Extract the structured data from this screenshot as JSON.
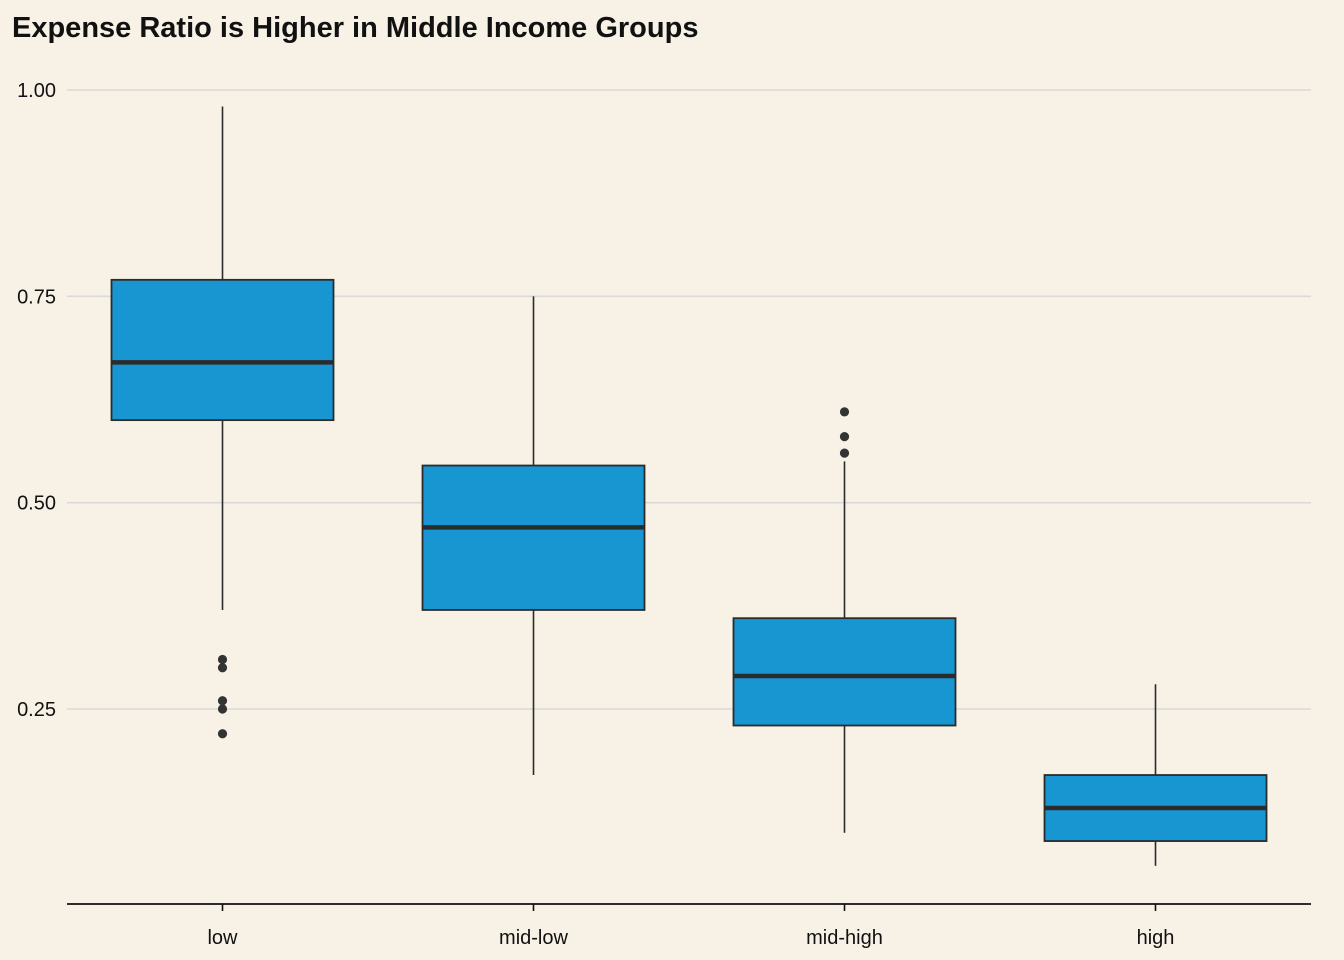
{
  "chart_data": {
    "type": "boxplot",
    "title": "Expense Ratio is Higher in Middle Income Groups",
    "xlabel": "",
    "ylabel": "",
    "ylim": [
      0.0,
      1.0
    ],
    "y_ticks": [
      "0.25",
      "0.50",
      "0.75",
      "1.00"
    ],
    "y_tick_values": [
      0.25,
      0.5,
      0.75,
      1.0
    ],
    "grid": "horizontal",
    "categories": [
      "low",
      "mid-low",
      "mid-high",
      "high"
    ],
    "boxes": [
      {
        "category": "low",
        "whisker_low": 0.37,
        "q1": 0.6,
        "median": 0.67,
        "q3": 0.77,
        "whisker_high": 0.98,
        "outliers": [
          0.31,
          0.3,
          0.26,
          0.25,
          0.22
        ]
      },
      {
        "category": "mid-low",
        "whisker_low": 0.17,
        "q1": 0.37,
        "median": 0.47,
        "q3": 0.545,
        "whisker_high": 0.75,
        "outliers": []
      },
      {
        "category": "mid-high",
        "whisker_low": 0.1,
        "q1": 0.23,
        "median": 0.29,
        "q3": 0.36,
        "whisker_high": 0.55,
        "outliers": [
          0.61,
          0.58,
          0.56
        ]
      },
      {
        "category": "high",
        "whisker_low": 0.06,
        "q1": 0.09,
        "median": 0.13,
        "q3": 0.17,
        "whisker_high": 0.28,
        "outliers": []
      }
    ],
    "colors": {
      "background": "#f7f1e6",
      "box_fill": "#1896d2",
      "box_stroke": "#2b2b2b",
      "median": "#2b2b2b",
      "outlier": "#333333",
      "grid": "#d9d9d9",
      "axis": "#111111"
    }
  }
}
